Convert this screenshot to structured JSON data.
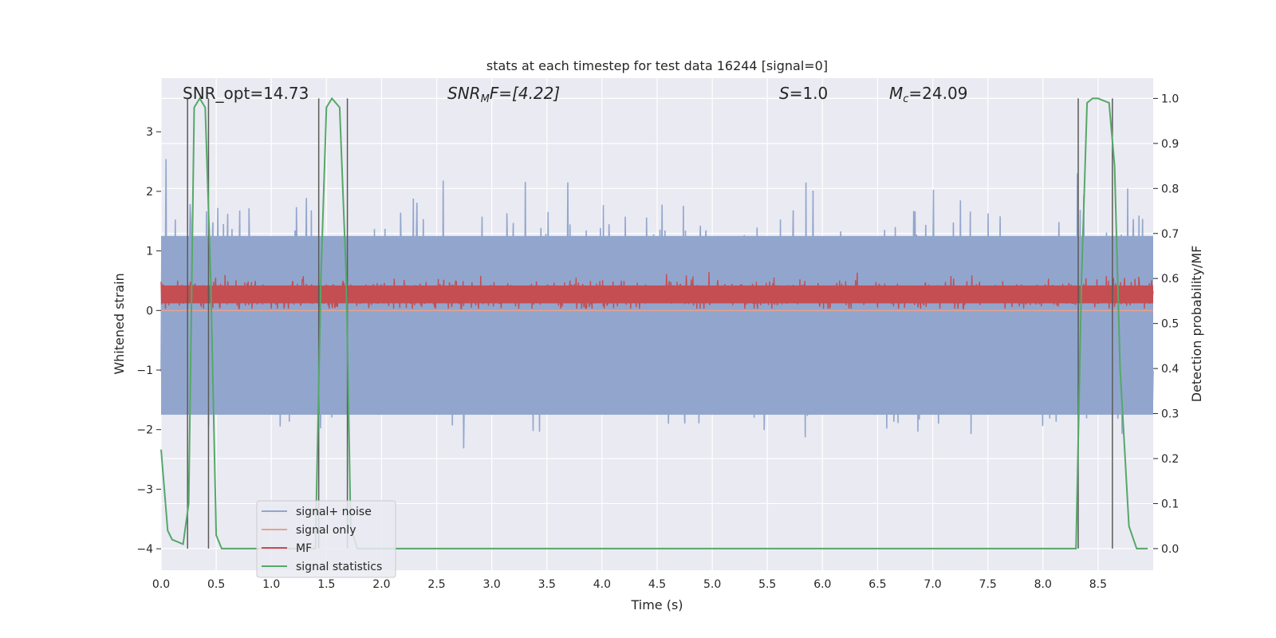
{
  "chart_data": {
    "type": "line",
    "title": "stats at each timestep for test data 16244 [signal=0]",
    "xlabel": "Time (s)",
    "ylabel": "Whitened strain",
    "ylabel_right": "Detection probability/MF",
    "xlim": [
      0.0,
      9.0
    ],
    "ylim": [
      -4.36,
      3.9
    ],
    "ylim_right": [
      -0.048,
      1.045
    ],
    "x_ticks": [
      0.0,
      0.5,
      1.0,
      1.5,
      2.0,
      2.5,
      3.0,
      3.5,
      4.0,
      4.5,
      5.0,
      5.5,
      6.0,
      6.5,
      7.0,
      7.5,
      8.0,
      8.5
    ],
    "x_tick_labels": [
      "0.0",
      "0.5",
      "1.0",
      "1.5",
      "2.0",
      "2.5",
      "3.0",
      "3.5",
      "4.0",
      "4.5",
      "5.0",
      "5.5",
      "6.0",
      "6.5",
      "7.0",
      "7.5",
      "8.0",
      "8.5"
    ],
    "y_ticks": [
      -4,
      -3,
      -2,
      -1,
      0,
      1,
      2,
      3
    ],
    "y_tick_labels": [
      "−4",
      "−3",
      "−2",
      "−1",
      "0",
      "1",
      "2",
      "3"
    ],
    "y_right_ticks": [
      0.0,
      0.1,
      0.2,
      0.3,
      0.4,
      0.5,
      0.6,
      0.7,
      0.8,
      0.9,
      1.0
    ],
    "y_right_tick_labels": [
      "0.0",
      "0.1",
      "0.2",
      "0.3",
      "0.4",
      "0.5",
      "0.6",
      "0.7",
      "0.8",
      "0.9",
      "1.0"
    ],
    "grid": true,
    "legend_position": "lower-left",
    "annotations": {
      "snr_opt": "SNR_opt=14.73",
      "snr_mf_sym": "SNR",
      "snr_mf_sub": "M",
      "snr_mf_rest": "F=[4.22]",
      "s_sym": "S",
      "s_rest": "=1.0",
      "mc_sym": "M",
      "mc_sub": "c",
      "mc_rest": "=24.09"
    },
    "series": [
      {
        "name": "signal+ noise",
        "color": "#92a6cd",
        "axis": "left",
        "description_values": {
          "band_min": -1.75,
          "band_max": 1.25,
          "spike_min": -4.0,
          "spike_max": 3.5
        }
      },
      {
        "name": "signal only",
        "color": "#e8a28a",
        "axis": "left",
        "values_constant": 0.0
      },
      {
        "name": "MF",
        "color": "#c44e52",
        "axis": "left",
        "description_values": {
          "band_min": 0.03,
          "band_max": 0.55
        }
      },
      {
        "name": "signal statistics",
        "color": "#55a868",
        "axis": "right",
        "x": [
          0.0,
          0.06,
          0.1,
          0.2,
          0.25,
          0.3,
          0.35,
          0.4,
          0.45,
          0.5,
          0.55,
          0.6,
          1.4,
          1.45,
          1.5,
          1.55,
          1.62,
          1.68,
          1.72,
          1.78,
          1.85,
          8.3,
          8.35,
          8.4,
          8.45,
          8.5,
          8.6,
          8.65,
          8.7,
          8.78,
          8.85,
          8.95
        ],
        "y": [
          0.22,
          0.04,
          0.02,
          0.01,
          0.1,
          0.98,
          1.0,
          0.98,
          0.6,
          0.03,
          0.0,
          0.0,
          0.0,
          0.6,
          0.98,
          1.0,
          0.98,
          0.6,
          0.05,
          0.0,
          0.0,
          0.0,
          0.6,
          0.99,
          1.0,
          1.0,
          0.99,
          0.85,
          0.4,
          0.05,
          0.0,
          0.0
        ]
      }
    ],
    "vertical_markers": [
      0.24,
      0.43,
      1.43,
      1.69,
      8.32,
      8.63
    ],
    "colors": {
      "plot_bg": "#eaeaf2",
      "grid": "#ffffff",
      "marker": "#5a5a5a"
    }
  }
}
